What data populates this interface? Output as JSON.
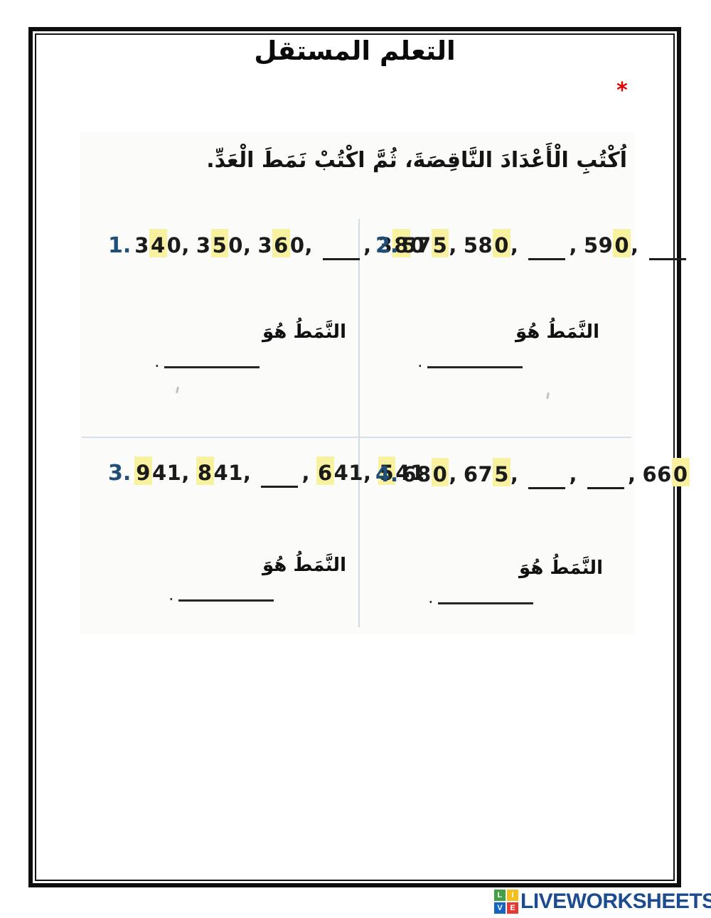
{
  "page": {
    "title": "التعلم المستقل",
    "required_marker": "*"
  },
  "worksheet": {
    "instruction": "اُكْتُبِ الْأَعْدَادَ النَّاقِصَةَ، ثُمَّ اكْتُبْ نَمَطَ الْعَدِّ.",
    "pattern_label": "النَّمَطُ هُوَ",
    "pattern_end_mark": ".",
    "problems": [
      {
        "number": "1.",
        "items": [
          {
            "pre": "3",
            "hl": "4",
            "post": "0"
          },
          {
            "pre": "3",
            "hl": "5",
            "post": "0"
          },
          {
            "pre": "3",
            "hl": "6",
            "post": "0"
          },
          {
            "blank": true
          },
          {
            "pre": "3",
            "hl": "8",
            "post": "0"
          }
        ]
      },
      {
        "number": "2.",
        "items": [
          {
            "pre": "57",
            "hl": "5",
            "post": ""
          },
          {
            "pre": "58",
            "hl": "0",
            "post": ""
          },
          {
            "blank": true
          },
          {
            "pre": "59",
            "hl": "0",
            "post": ""
          },
          {
            "blank": true
          }
        ]
      },
      {
        "number": "3.",
        "items": [
          {
            "pre": "",
            "hl": "9",
            "post": "41"
          },
          {
            "pre": "",
            "hl": "8",
            "post": "41"
          },
          {
            "blank": true
          },
          {
            "pre": "",
            "hl": "6",
            "post": "41"
          },
          {
            "pre": "",
            "hl": "5",
            "post": "41"
          }
        ]
      },
      {
        "number": "4.",
        "items": [
          {
            "pre": "68",
            "hl": "0",
            "post": ""
          },
          {
            "pre": "67",
            "hl": "5",
            "post": ""
          },
          {
            "blank": true
          },
          {
            "blank": true
          },
          {
            "pre": "66",
            "hl": "0",
            "post": ""
          }
        ]
      }
    ]
  },
  "footer": {
    "brand_text": "LIVEWORKSHEETS",
    "logo_squares": [
      {
        "letter": "L",
        "color": "#43a047"
      },
      {
        "letter": "I",
        "color": "#f6c01c"
      },
      {
        "letter": "V",
        "color": "#1565c0"
      },
      {
        "letter": "E",
        "color": "#e53935"
      }
    ]
  },
  "colors": {
    "accent_red": "#e10000",
    "problem_number_blue": "#1f4e79",
    "highlight_yellow": "#f8f19f",
    "brand_navy": "#1c4b8f"
  }
}
